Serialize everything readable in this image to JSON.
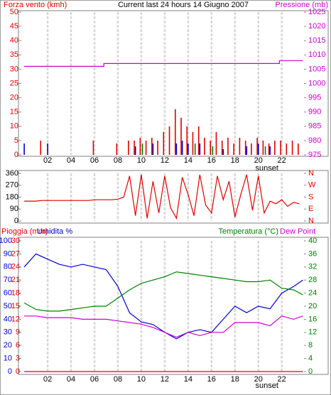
{
  "chart_data": [
    {
      "type": "bar",
      "title": "Current last 24 hours 14 Giugno 2007",
      "ylabel": "Forza vento (kmh)",
      "y2label": "Pressione (mb)",
      "xlim": [
        -0.25,
        23.9
      ],
      "xticks": [
        {
          "value": 2,
          "label": "02"
        },
        {
          "value": 4,
          "label": "04"
        },
        {
          "value": 6,
          "label": "06"
        },
        {
          "value": 8,
          "label": "08"
        },
        {
          "value": 10,
          "label": "10"
        },
        {
          "value": 12,
          "label": "12"
        },
        {
          "value": 14,
          "label": "14"
        },
        {
          "value": 16,
          "label": "16"
        },
        {
          "value": 18,
          "label": "18"
        },
        {
          "value": 20,
          "label": "20"
        },
        {
          "value": 22,
          "label": "22"
        }
      ],
      "ylim": [
        0,
        50
      ],
      "yticks": [
        0,
        5,
        10,
        15,
        20,
        25,
        30,
        35,
        40,
        45,
        50
      ],
      "ycolor": "#e00000",
      "y2lim": [
        975,
        1025
      ],
      "y2ticks": [
        975,
        980,
        985,
        990,
        995,
        1000,
        1005,
        1010,
        1015,
        1020,
        1025
      ],
      "y2color": "#d000d0",
      "grid": true,
      "annotations": [
        {
          "text": "sunset",
          "x": 20
        }
      ],
      "series": [
        {
          "type": "bar",
          "color": "#e00000",
          "x": [
            0,
            0.5,
            1,
            1.5,
            2,
            2.5,
            3,
            3.5,
            4,
            4.5,
            5,
            5.5,
            6,
            6.5,
            7,
            7.5,
            8,
            8.5,
            9,
            9.5,
            10,
            10.5,
            11,
            11.5,
            12,
            12.5,
            13,
            13.5,
            14,
            14.5,
            15,
            15.5,
            16,
            16.5,
            17,
            17.5,
            18,
            18.5,
            19,
            19.5,
            20,
            20.5,
            21,
            21.5,
            22,
            22.5,
            23,
            23.5
          ],
          "values": [
            0,
            0,
            0,
            5,
            0,
            0,
            0,
            0,
            0,
            0,
            0,
            0,
            5,
            0,
            0,
            0,
            4,
            0,
            5,
            5,
            6,
            5,
            6,
            5,
            8,
            10,
            16,
            13,
            10,
            8,
            10,
            6,
            5,
            8,
            5,
            6,
            4,
            6,
            5,
            4,
            6,
            5,
            4,
            5,
            5,
            4,
            5,
            4
          ]
        },
        {
          "type": "bar",
          "color": "#0000d0",
          "x": [
            0,
            0.5,
            1,
            1.5,
            2,
            2.5,
            3,
            3.5,
            4,
            4.5,
            5,
            5.5,
            6,
            6.5,
            7,
            7.5,
            8,
            8.5,
            9,
            9.5,
            10,
            10.5,
            11,
            11.5,
            12,
            12.5,
            13,
            13.5,
            14,
            14.5,
            15,
            15.5,
            16,
            16.5,
            17,
            17.5,
            18,
            18.5,
            19,
            19.5,
            20,
            20.5,
            21,
            21.5,
            22,
            22.5,
            23,
            23.5
          ],
          "values": [
            4,
            0,
            0,
            0,
            4,
            0,
            0,
            0,
            0,
            0,
            0,
            0,
            0,
            0,
            0,
            0,
            0,
            0,
            0,
            3,
            0,
            0,
            4,
            0,
            0,
            0,
            4,
            5,
            4,
            0,
            4,
            0,
            0,
            0,
            2,
            0,
            0,
            0,
            3,
            0,
            4,
            0,
            3,
            0,
            0,
            0,
            0,
            0
          ]
        },
        {
          "type": "bar",
          "color": "#008000",
          "x": [
            0,
            0.5,
            1,
            1.5,
            2,
            2.5,
            3,
            3.5,
            4,
            4.5,
            5,
            5.5,
            6,
            6.5,
            7,
            7.5,
            8,
            8.5,
            9,
            9.5,
            10,
            10.5,
            11,
            11.5,
            12,
            12.5,
            13,
            13.5,
            14,
            14.5,
            15,
            15.5,
            16,
            16.5,
            17,
            17.5,
            18,
            18.5,
            19,
            19.5,
            20,
            20.5,
            21,
            21.5,
            22,
            22.5,
            23,
            23.5
          ],
          "values": [
            0,
            0,
            0,
            0,
            0,
            0,
            0,
            0,
            0,
            0,
            0,
            0,
            0,
            0,
            0,
            0,
            0,
            0,
            0,
            0,
            4,
            0,
            0,
            0,
            0,
            0,
            0,
            0,
            0,
            4,
            0,
            0,
            3,
            0,
            0,
            0,
            0,
            0,
            0,
            0,
            0,
            3,
            0,
            0,
            0,
            0,
            0,
            0
          ]
        },
        {
          "type": "line",
          "axis": "y2",
          "color": "#d000d0",
          "x": [
            0,
            6.8,
            6.8,
            21.8,
            21.8,
            23.8
          ],
          "values": [
            1006,
            1006,
            1007,
            1007,
            1008,
            1008
          ]
        }
      ]
    },
    {
      "type": "line",
      "xlim": [
        -0.25,
        23.9
      ],
      "xticks": [
        {
          "value": 2,
          "label": "02"
        },
        {
          "value": 4,
          "label": "04"
        },
        {
          "value": 6,
          "label": "06"
        },
        {
          "value": 8,
          "label": "08"
        },
        {
          "value": 10,
          "label": "10"
        },
        {
          "value": 12,
          "label": "12"
        },
        {
          "value": 14,
          "label": "14"
        },
        {
          "value": 16,
          "label": "16"
        },
        {
          "value": 18,
          "label": "18"
        },
        {
          "value": 20,
          "label": "20"
        },
        {
          "value": 22,
          "label": "22"
        }
      ],
      "ylim": [
        0,
        360
      ],
      "yticks": [
        0,
        90,
        180,
        270,
        360
      ],
      "ycolor": "#000000",
      "y2lim": [
        0,
        360
      ],
      "y2ticks": [
        {
          "value": 0,
          "label": "N"
        },
        {
          "value": 90,
          "label": "E"
        },
        {
          "value": 180,
          "label": "S"
        },
        {
          "value": 270,
          "label": "W"
        },
        {
          "value": 360,
          "label": "N"
        }
      ],
      "y2color": "#e00000",
      "grid": true,
      "series": [
        {
          "type": "line",
          "color": "#e00000",
          "x": [
            0,
            0.5,
            1,
            1.5,
            2,
            2.5,
            3,
            3.5,
            4,
            4.5,
            5,
            5.5,
            6,
            6.5,
            7,
            7.5,
            8,
            8.5,
            9,
            9.5,
            10,
            10.5,
            11,
            11.5,
            12,
            12.5,
            13,
            13.5,
            14,
            14.5,
            15,
            15.5,
            16,
            16.5,
            17,
            17.5,
            18,
            18.5,
            19,
            19.5,
            20,
            20.5,
            21,
            21.5,
            22,
            22.5,
            23,
            23.5
          ],
          "values": [
            150,
            150,
            150,
            155,
            155,
            155,
            155,
            155,
            155,
            155,
            155,
            155,
            160,
            160,
            160,
            160,
            165,
            180,
            340,
            40,
            350,
            20,
            300,
            60,
            340,
            100,
            20,
            330,
            200,
            40,
            350,
            120,
            60,
            340,
            160,
            300,
            30,
            200,
            350,
            80,
            340,
            60,
            150,
            130,
            160,
            110,
            140,
            130
          ]
        }
      ]
    },
    {
      "type": "line",
      "xlim": [
        -0.25,
        23.9
      ],
      "xticks": [
        {
          "value": 2,
          "label": "02"
        },
        {
          "value": 4,
          "label": "04"
        },
        {
          "value": 6,
          "label": "06"
        },
        {
          "value": 8,
          "label": "08"
        },
        {
          "value": 10,
          "label": "10"
        },
        {
          "value": 12,
          "label": "12"
        },
        {
          "value": 14,
          "label": "14"
        },
        {
          "value": 16,
          "label": "16"
        },
        {
          "value": 18,
          "label": "18"
        },
        {
          "value": 20,
          "label": "20"
        },
        {
          "value": 22,
          "label": "22"
        }
      ],
      "ylim": [
        0,
        100
      ],
      "yticks": [
        0,
        10,
        20,
        30,
        40,
        50,
        60,
        70,
        80,
        90,
        100
      ],
      "ycolor": "#0000d0",
      "y3lim": [
        0,
        30
      ],
      "y3ticks": [
        0,
        3,
        6,
        9,
        12,
        15,
        18,
        21,
        24,
        27,
        30
      ],
      "y3color": "#e00000",
      "y2lim": [
        0,
        40
      ],
      "y2ticks": [
        0,
        4,
        8,
        12,
        16,
        20,
        24,
        28,
        32,
        36,
        40
      ],
      "y2color": "#008000",
      "grid": true,
      "annotations": [
        {
          "text": "sunset",
          "x": 20
        }
      ],
      "series": [
        {
          "type": "line",
          "name": "Pioggia (mm)",
          "axis": "y3",
          "color": "#e00000",
          "x": [
            0,
            23.8
          ],
          "values": [
            0,
            0
          ]
        },
        {
          "type": "line",
          "name": "Umidita %",
          "color": "#0000d0",
          "x": [
            0,
            1,
            2,
            3,
            4,
            5,
            6,
            7,
            8,
            9,
            10,
            11,
            12,
            13,
            14,
            15,
            16,
            17,
            18,
            19,
            20,
            21,
            22,
            23,
            23.8
          ],
          "values": [
            80,
            90,
            86,
            82,
            80,
            82,
            80,
            78,
            65,
            45,
            38,
            36,
            30,
            25,
            30,
            32,
            30,
            40,
            50,
            45,
            50,
            48,
            60,
            65,
            70
          ]
        },
        {
          "type": "line",
          "name": "Temperatura (°C)",
          "axis": "y2",
          "color": "#008000",
          "x": [
            0,
            1,
            2,
            3,
            4,
            5,
            6,
            7,
            8,
            9,
            10,
            11,
            12,
            13,
            14,
            15,
            16,
            17,
            18,
            19,
            20,
            21,
            22,
            23,
            23.8
          ],
          "values": [
            21,
            19,
            18.5,
            18.5,
            19,
            19.5,
            20,
            20,
            22.5,
            25,
            27,
            28,
            29,
            30.5,
            30,
            29.5,
            29,
            28.5,
            28,
            27.5,
            27.5,
            28,
            25.5,
            25,
            23.5
          ]
        },
        {
          "type": "line",
          "name": "Dew Point",
          "axis": "y2",
          "color": "#d000d0",
          "x": [
            0,
            1,
            2,
            3,
            4,
            5,
            6,
            7,
            8,
            9,
            10,
            11,
            12,
            13,
            14,
            15,
            16,
            17,
            18,
            19,
            20,
            21,
            22,
            23,
            23.8
          ],
          "values": [
            17,
            17,
            16.5,
            16.5,
            16.5,
            16,
            16,
            16,
            15.5,
            15,
            14.5,
            13.5,
            12,
            10.5,
            12,
            11,
            12,
            12,
            15,
            15,
            15,
            14,
            17,
            16,
            17
          ]
        }
      ]
    }
  ]
}
